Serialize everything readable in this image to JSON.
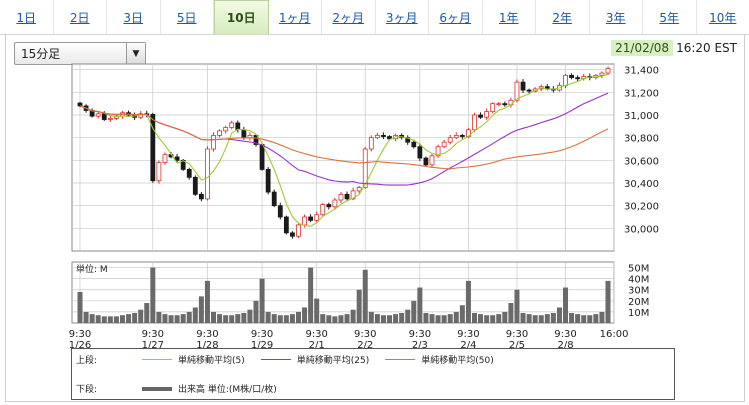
{
  "tabs": [
    {
      "label": "1日"
    },
    {
      "label": "2日"
    },
    {
      "label": "3日"
    },
    {
      "label": "5日"
    },
    {
      "label": "10日",
      "active": true
    },
    {
      "label": "1ヶ月"
    },
    {
      "label": "2ヶ月"
    },
    {
      "label": "3ヶ月"
    },
    {
      "label": "6ヶ月"
    },
    {
      "label": "1年"
    },
    {
      "label": "2年"
    },
    {
      "label": "3年"
    },
    {
      "label": "5年"
    },
    {
      "label": "10年"
    }
  ],
  "interval_select": {
    "value": "15分足"
  },
  "timestamp": {
    "date": "21/02/08",
    "time": "16:20 EST"
  },
  "legend": {
    "upper_label": "上段:",
    "lower_label": "下段:",
    "items": [
      {
        "label": "単純移動平均(5)",
        "color": "#9acd32"
      },
      {
        "label": "単純移動平均(25)",
        "color": "#9932cc"
      },
      {
        "label": "単純移動平均(50)",
        "color": "#e0703a"
      }
    ],
    "volume_label": "出来高 単位:(M株/口/枚)"
  },
  "chart_data": {
    "type": "candlestick",
    "price": {
      "ylim": [
        29800,
        31450
      ],
      "yticks": [
        "31,400",
        "31,200",
        "31,000",
        "30,800",
        "30,600",
        "30,400",
        "30,200",
        "30,000"
      ],
      "ytick_values": [
        31400,
        31200,
        31000,
        30800,
        30600,
        30400,
        30200,
        30000
      ],
      "closes": [
        31080,
        31040,
        30990,
        31010,
        30960,
        30970,
        30990,
        31020,
        31000,
        30980,
        31010,
        31005,
        30420,
        30580,
        30650,
        30630,
        30600,
        30520,
        30450,
        30300,
        30260,
        30700,
        30820,
        30860,
        30890,
        30930,
        30870,
        30800,
        30820,
        30740,
        30520,
        30320,
        30200,
        30100,
        29960,
        29930,
        30030,
        30100,
        30070,
        30120,
        30210,
        30190,
        30250,
        30300,
        30260,
        30330,
        30360,
        30700,
        30800,
        30820,
        30810,
        30790,
        30820,
        30800,
        30760,
        30720,
        30620,
        30560,
        30640,
        30720,
        30760,
        30800,
        30820,
        30810,
        30870,
        31000,
        30980,
        31030,
        31100,
        31100,
        31090,
        31130,
        31290,
        31220,
        31210,
        31230,
        31250,
        31230,
        31220,
        31260,
        31350,
        31330,
        31320,
        31340,
        31330,
        31350,
        31370,
        31410
      ]
    },
    "volume": {
      "unit_label": "単位: M",
      "ylim": [
        0,
        55
      ],
      "yticks": [
        "50M",
        "40M",
        "30M",
        "20M",
        "10M"
      ],
      "ytick_values": [
        50,
        40,
        30,
        20,
        10
      ],
      "values": [
        28,
        10,
        8,
        7,
        6,
        6,
        6,
        7,
        8,
        9,
        12,
        18,
        50,
        10,
        8,
        7,
        7,
        8,
        10,
        14,
        24,
        38,
        10,
        8,
        7,
        7,
        8,
        9,
        12,
        20,
        40,
        10,
        8,
        7,
        7,
        8,
        10,
        14,
        50,
        22,
        8,
        7,
        6,
        7,
        8,
        12,
        30,
        48,
        10,
        8,
        7,
        7,
        8,
        9,
        12,
        20,
        32,
        9,
        8,
        7,
        7,
        8,
        10,
        16,
        38,
        9,
        8,
        7,
        7,
        8,
        10,
        18,
        30,
        9,
        8,
        7,
        7,
        8,
        9,
        14,
        32,
        9,
        8,
        7,
        7,
        8,
        10,
        38
      ]
    },
    "x_labels": [
      {
        "time": "9:30",
        "date": "1/26"
      },
      {
        "time": "9:30",
        "date": "1/27"
      },
      {
        "time": "9:30",
        "date": "1/28"
      },
      {
        "time": "9:30",
        "date": "1/29"
      },
      {
        "time": "9:30",
        "date": "2/1"
      },
      {
        "time": "9:30",
        "date": "2/2"
      },
      {
        "time": "9:30",
        "date": "2/3"
      },
      {
        "time": "9:30",
        "date": "2/4"
      },
      {
        "time": "9:30",
        "date": "2/5"
      },
      {
        "time": "9:30",
        "date": "2/8"
      },
      {
        "time": "16:00",
        "date": ""
      }
    ],
    "x_label_indices": [
      0,
      12,
      21,
      30,
      39,
      47,
      56,
      64,
      72,
      80,
      88
    ],
    "colors": {
      "up": "#e03030",
      "down": "#1a1a1a",
      "volume": "#6a6a6a",
      "grid": "#c8c8c8"
    },
    "grid": true,
    "ma_periods": [
      5,
      25,
      50
    ]
  }
}
